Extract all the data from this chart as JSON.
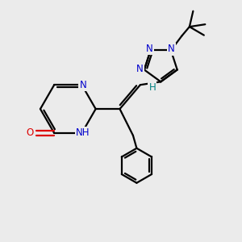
{
  "background_color": "#ebebeb",
  "bond_color": "#000000",
  "N_color": "#0000cc",
  "O_color": "#dd0000",
  "H_color": "#008080",
  "figsize": [
    3.0,
    3.0
  ],
  "dpi": 100,
  "xlim": [
    0,
    10
  ],
  "ylim": [
    0,
    10
  ],
  "lw": 1.6,
  "fs": 8.5
}
